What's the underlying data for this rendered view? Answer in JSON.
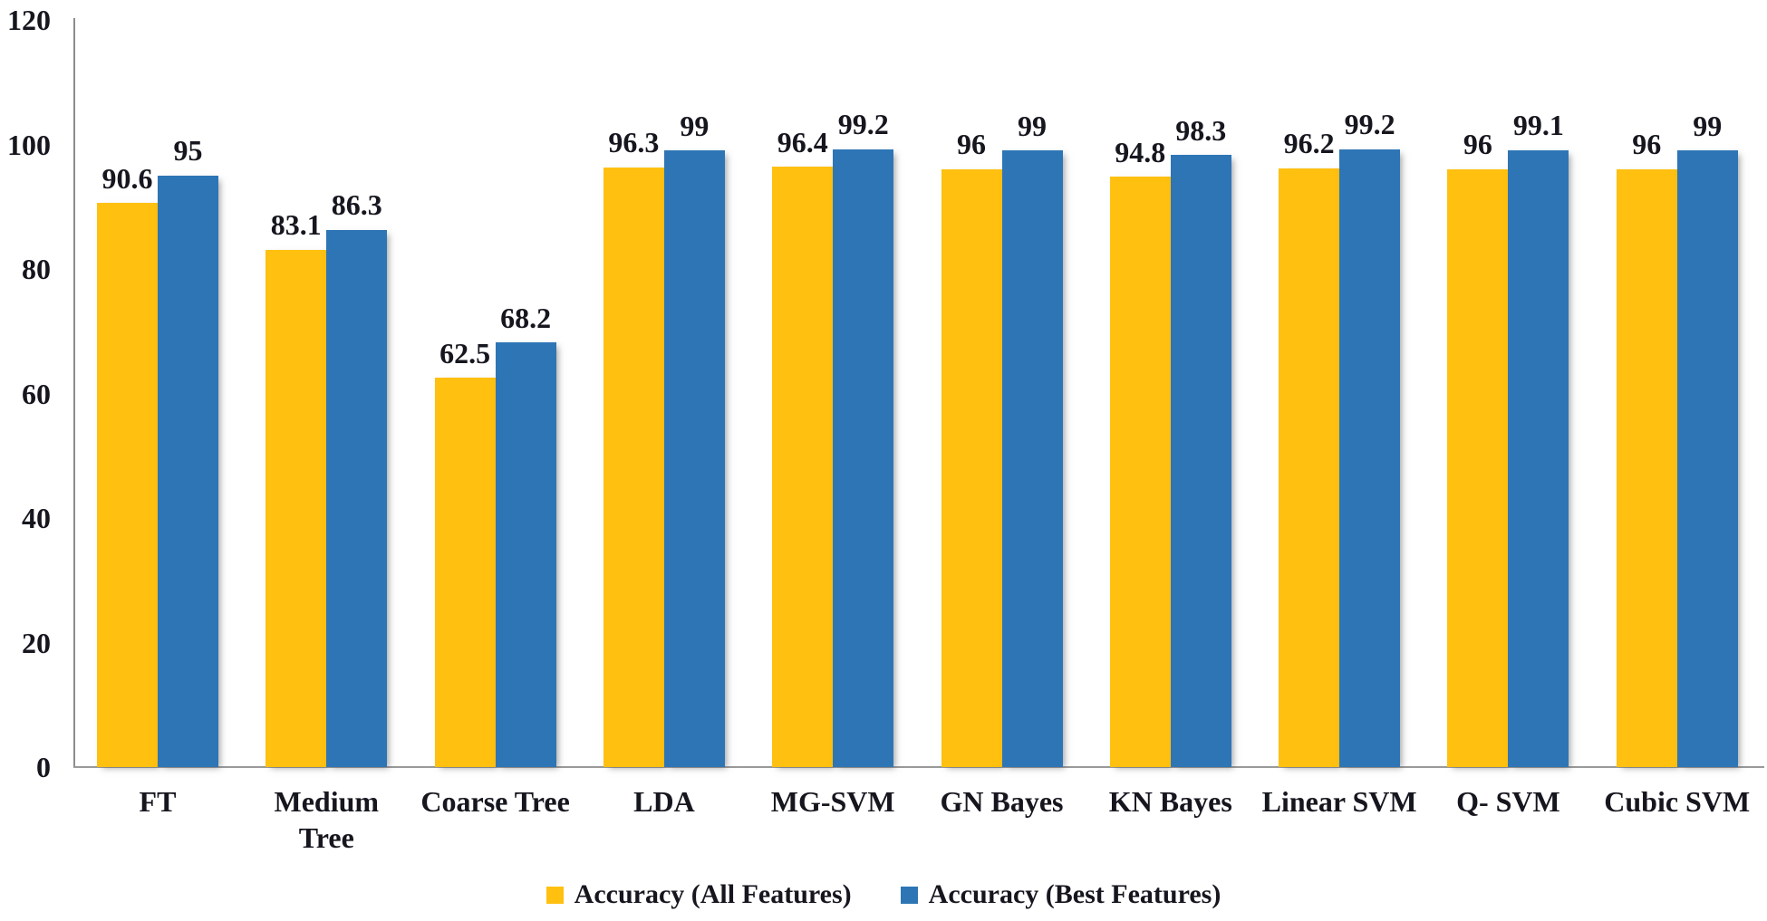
{
  "chart_data": {
    "type": "bar",
    "title": "",
    "xlabel": "",
    "ylabel": "",
    "categories": [
      "FT",
      "Medium\nTree",
      "Coarse Tree",
      "LDA",
      "MG-SVM",
      "GN Bayes",
      "KN Bayes",
      "Linear SVM",
      "Q- SVM",
      "Cubic SVM"
    ],
    "series": [
      {
        "name": "Accuracy (All Features)",
        "color": "#FFC010",
        "values": [
          90.6,
          83.1,
          62.5,
          96.3,
          96.4,
          96,
          94.8,
          96.2,
          96,
          96
        ]
      },
      {
        "name": "Accuracy (Best Features)",
        "color": "#2E75B6",
        "values": [
          95,
          86.3,
          68.2,
          99,
          99.2,
          99,
          98.3,
          99.2,
          99.1,
          99
        ]
      }
    ],
    "ylim": [
      0,
      120
    ],
    "yticks": [
      0,
      20,
      40,
      60,
      80,
      100,
      120
    ],
    "grid": false,
    "data_labels": true,
    "legend_position": "bottom-center",
    "axis_color": "#8C8C8C",
    "text_color": "#16161F"
  }
}
